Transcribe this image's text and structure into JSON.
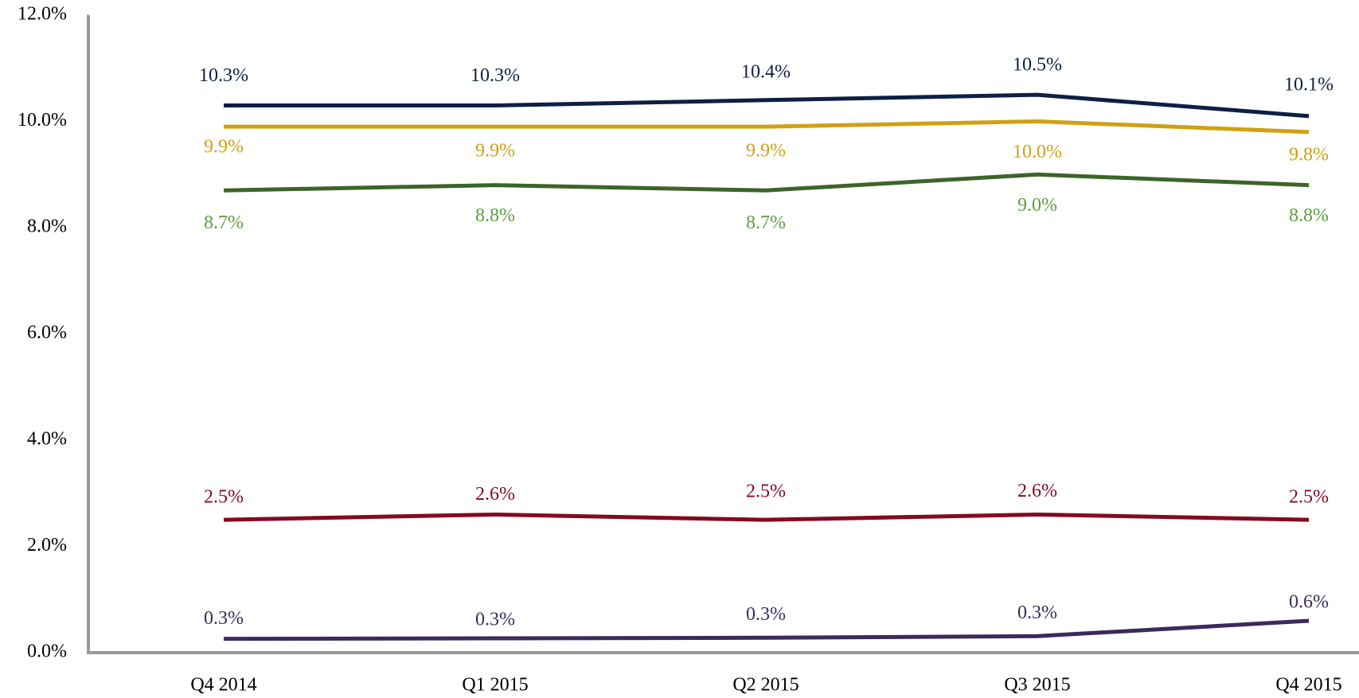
{
  "chart_data": {
    "type": "line",
    "categories": [
      "Q4 2014",
      "Q1 2015",
      "Q2 2015",
      "Q3 2015",
      "Q4 2015"
    ],
    "series": [
      {
        "color": "#0d1f45",
        "label_color": "#0d1f45",
        "values": [
          10.3,
          10.3,
          10.4,
          10.5,
          10.1
        ],
        "value_labels": [
          "10.3%",
          "10.3%",
          "10.4%",
          "10.5%",
          "10.1%"
        ]
      },
      {
        "color": "#d1a013",
        "label_color": "#d1a013",
        "values": [
          9.9,
          9.9,
          9.9,
          10.0,
          9.8
        ],
        "value_labels": [
          "9.9%",
          "9.9%",
          "9.9%",
          "10.0%",
          "9.8%"
        ]
      },
      {
        "color": "#3c6428",
        "label_color": "#5c9e3c",
        "values": [
          8.7,
          8.8,
          8.7,
          9.0,
          8.8
        ],
        "value_labels": [
          "8.7%",
          "8.8%",
          "8.7%",
          "9.0%",
          "8.8%"
        ]
      },
      {
        "color": "#86091f",
        "label_color": "#86091f",
        "values": [
          2.5,
          2.6,
          2.5,
          2.6,
          2.5
        ],
        "value_labels": [
          "2.5%",
          "2.6%",
          "2.5%",
          "2.6%",
          "2.5%"
        ]
      },
      {
        "color": "#3b2a5c",
        "label_color": "#3b2a5c",
        "values": [
          0.26,
          0.27,
          0.28,
          0.31,
          0.6
        ],
        "value_labels": [
          "0.3%",
          "0.3%",
          "0.3%",
          "0.3%",
          "0.6%"
        ]
      }
    ],
    "ylim": [
      0,
      12
    ],
    "yticks": [
      {
        "value": 0,
        "label": "0.0%"
      },
      {
        "value": 2,
        "label": "2.0%"
      },
      {
        "value": 4,
        "label": "4.0%"
      },
      {
        "value": 6,
        "label": "6.0%"
      },
      {
        "value": 8,
        "label": "8.0%"
      },
      {
        "value": 10,
        "label": "10.0%"
      },
      {
        "value": 12,
        "label": "12.0%"
      }
    ],
    "grid": false
  }
}
